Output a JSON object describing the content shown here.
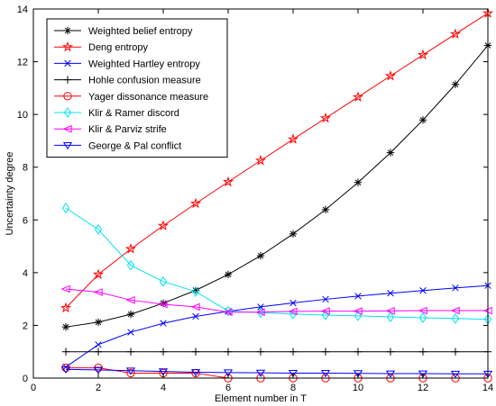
{
  "chart_data": {
    "type": "line",
    "xlabel": "Element number in T",
    "ylabel": "Uncertainty degree",
    "xlim": [
      0,
      14
    ],
    "ylim": [
      0,
      14
    ],
    "xticks": [
      "0",
      "2",
      "4",
      "6",
      "8",
      "10",
      "12",
      "14"
    ],
    "yticks": [
      "0",
      "2",
      "4",
      "6",
      "8",
      "10",
      "12",
      "14"
    ],
    "grid": false,
    "legend_position": "top-left",
    "x": [
      1,
      2,
      3,
      4,
      5,
      6,
      7,
      8,
      9,
      10,
      11,
      12,
      13,
      14
    ],
    "series": [
      {
        "name": "Weighted belief entropy",
        "color": "#000000",
        "marker": "asterisk",
        "values": [
          1.94,
          2.12,
          2.42,
          2.84,
          3.33,
          3.93,
          4.64,
          5.47,
          6.39,
          7.42,
          8.55,
          9.79,
          11.14,
          12.62
        ]
      },
      {
        "name": "Deng entropy",
        "color": "#ff0000",
        "marker": "star",
        "values": [
          2.66,
          3.93,
          4.9,
          5.78,
          6.62,
          7.44,
          8.25,
          9.06,
          9.86,
          10.66,
          11.46,
          12.26,
          13.05,
          13.84
        ]
      },
      {
        "name": "Weighted Hartley entropy",
        "color": "#0000ff",
        "marker": "x",
        "values": [
          0.42,
          1.27,
          1.74,
          2.08,
          2.34,
          2.53,
          2.7,
          2.85,
          2.99,
          3.11,
          3.22,
          3.32,
          3.42,
          3.51
        ]
      },
      {
        "name": "Hohle confusion measure",
        "color": "#000000",
        "marker": "plus",
        "values": [
          1.0,
          1.0,
          1.0,
          1.0,
          1.0,
          1.0,
          1.0,
          1.0,
          1.0,
          1.0,
          1.0,
          1.0,
          1.0,
          1.0
        ]
      },
      {
        "name": "Yager dissonance measure",
        "color": "#ff0000",
        "marker": "circle",
        "values": [
          0.39,
          0.39,
          0.19,
          0.19,
          0.19,
          0.0,
          0.0,
          0.0,
          0.0,
          0.0,
          0.0,
          0.0,
          0.0,
          0.0
        ]
      },
      {
        "name": "Klir & Ramer discord",
        "color": "#00e5ee",
        "marker": "diamond",
        "values": [
          6.45,
          5.64,
          4.28,
          3.66,
          3.28,
          2.54,
          2.48,
          2.43,
          2.39,
          2.36,
          2.32,
          2.29,
          2.26,
          2.23
        ]
      },
      {
        "name": "Klir & Parviz strife",
        "color": "#ff00ff",
        "marker": "triangle-left",
        "values": [
          3.38,
          3.26,
          2.96,
          2.8,
          2.7,
          2.5,
          2.5,
          2.53,
          2.54,
          2.54,
          2.55,
          2.56,
          2.56,
          2.56
        ]
      },
      {
        "name": "George & Pal conflict",
        "color": "#0000ff",
        "marker": "triangle-down",
        "values": [
          0.33,
          0.31,
          0.28,
          0.25,
          0.22,
          0.21,
          0.2,
          0.19,
          0.19,
          0.18,
          0.17,
          0.17,
          0.16,
          0.16
        ]
      }
    ]
  }
}
